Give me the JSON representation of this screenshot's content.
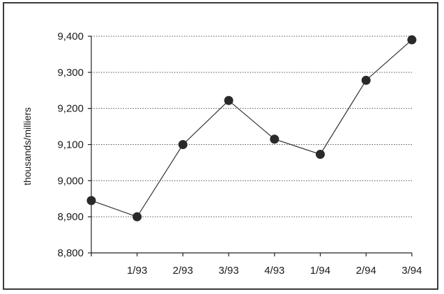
{
  "chart_data": {
    "type": "line",
    "title": "",
    "xlabel": "",
    "ylabel": "thousands/milliers",
    "categories": [
      "",
      "1/93",
      "2/93",
      "3/93",
      "4/93",
      "1/94",
      "2/94",
      "3/94"
    ],
    "series": [
      {
        "values": [
          8945,
          8900,
          9100,
          9222,
          9115,
          9073,
          9278,
          9390
        ]
      }
    ],
    "ylim": [
      8800,
      9400
    ],
    "yticks": [
      8800,
      8900,
      9000,
      9100,
      9200,
      9300,
      9400
    ],
    "ytick_labels": [
      "8,800",
      "8,900",
      "9,000",
      "9,100",
      "9,200",
      "9,300",
      "9,400"
    ],
    "grid": true,
    "legend": "none",
    "colors": {
      "line": "#333333",
      "marker": "#2a2a2a",
      "grid": "#555555"
    }
  }
}
